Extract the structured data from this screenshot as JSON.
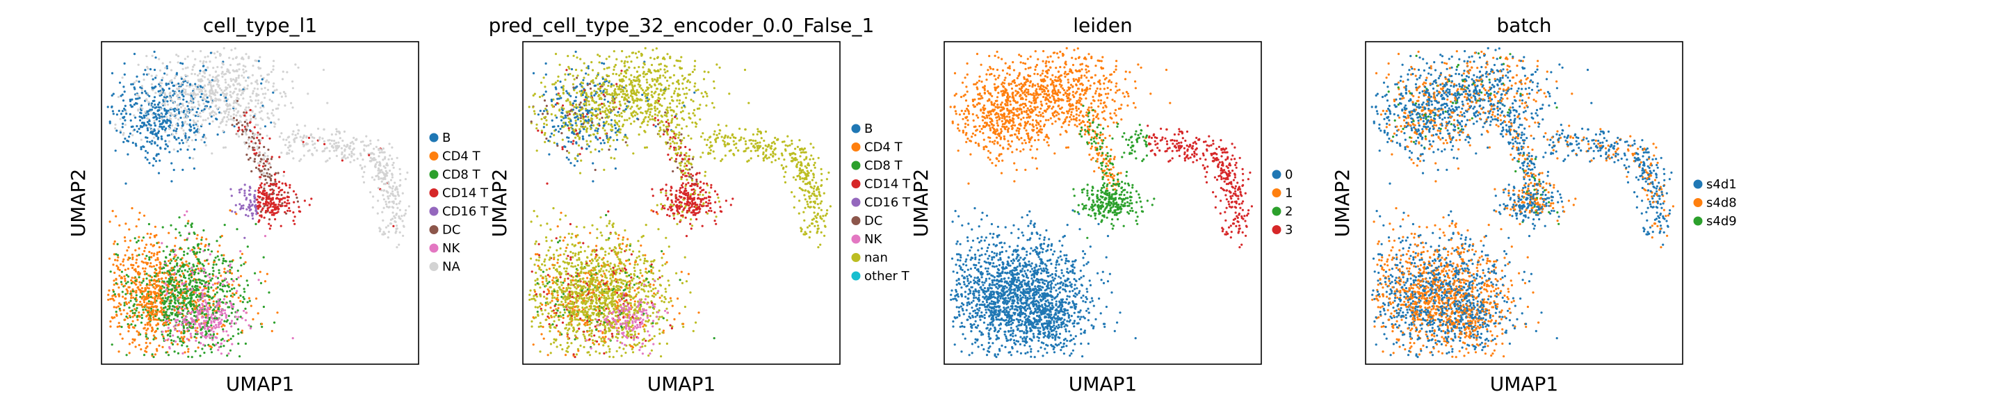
{
  "figure": {
    "colors": {
      "tab_blue": "#1f77b4",
      "tab_orange": "#ff7f0e",
      "tab_green": "#2ca02c",
      "tab_red": "#d62728",
      "tab_purple": "#9467bd",
      "tab_brown": "#8c564b",
      "tab_pink": "#e377c2",
      "tab_olive": "#bcbd22",
      "tab_cyan": "#17becf",
      "na_gray": "#d3d3d3"
    }
  },
  "chart_data": [
    {
      "type": "scatter",
      "title": "cell_type_l1",
      "xlabel": "UMAP1",
      "ylabel": "UMAP2",
      "grid": false,
      "legend": {
        "placement": "right",
        "entries": [
          {
            "label": "B",
            "color": "#1f77b4"
          },
          {
            "label": "CD4 T",
            "color": "#ff7f0e"
          },
          {
            "label": "CD8 T",
            "color": "#2ca02c"
          },
          {
            "label": "CD14 T",
            "color": "#d62728"
          },
          {
            "label": "CD16 T",
            "color": "#9467bd"
          },
          {
            "label": "DC",
            "color": "#8c564b"
          },
          {
            "label": "NK",
            "color": "#e377c2"
          },
          {
            "label": "NA",
            "color": "#d3d3d3"
          }
        ]
      }
    },
    {
      "type": "scatter",
      "title": "pred_cell_type_32_encoder_0.0_False_1",
      "xlabel": "UMAP1",
      "ylabel": "UMAP2",
      "grid": false,
      "legend": {
        "placement": "right",
        "entries": [
          {
            "label": "B",
            "color": "#1f77b4"
          },
          {
            "label": "CD4 T",
            "color": "#ff7f0e"
          },
          {
            "label": "CD8 T",
            "color": "#2ca02c"
          },
          {
            "label": "CD14 T",
            "color": "#d62728"
          },
          {
            "label": "CD16 T",
            "color": "#9467bd"
          },
          {
            "label": "DC",
            "color": "#8c564b"
          },
          {
            "label": "NK",
            "color": "#e377c2"
          },
          {
            "label": "nan",
            "color": "#bcbd22"
          },
          {
            "label": "other T",
            "color": "#17becf"
          }
        ]
      }
    },
    {
      "type": "scatter",
      "title": "leiden",
      "xlabel": "UMAP1",
      "ylabel": "UMAP2",
      "grid": false,
      "legend": {
        "placement": "right",
        "entries": [
          {
            "label": "0",
            "color": "#1f77b4"
          },
          {
            "label": "1",
            "color": "#ff7f0e"
          },
          {
            "label": "2",
            "color": "#2ca02c"
          },
          {
            "label": "3",
            "color": "#d62728"
          }
        ]
      }
    },
    {
      "type": "scatter",
      "title": "batch",
      "xlabel": "UMAP1",
      "ylabel": "UMAP2",
      "grid": false,
      "legend": {
        "placement": "right",
        "entries": [
          {
            "label": "s4d1",
            "color": "#1f77b4"
          },
          {
            "label": "s4d8",
            "color": "#ff7f0e"
          },
          {
            "label": "s4d9",
            "color": "#2ca02c"
          }
        ]
      }
    }
  ]
}
